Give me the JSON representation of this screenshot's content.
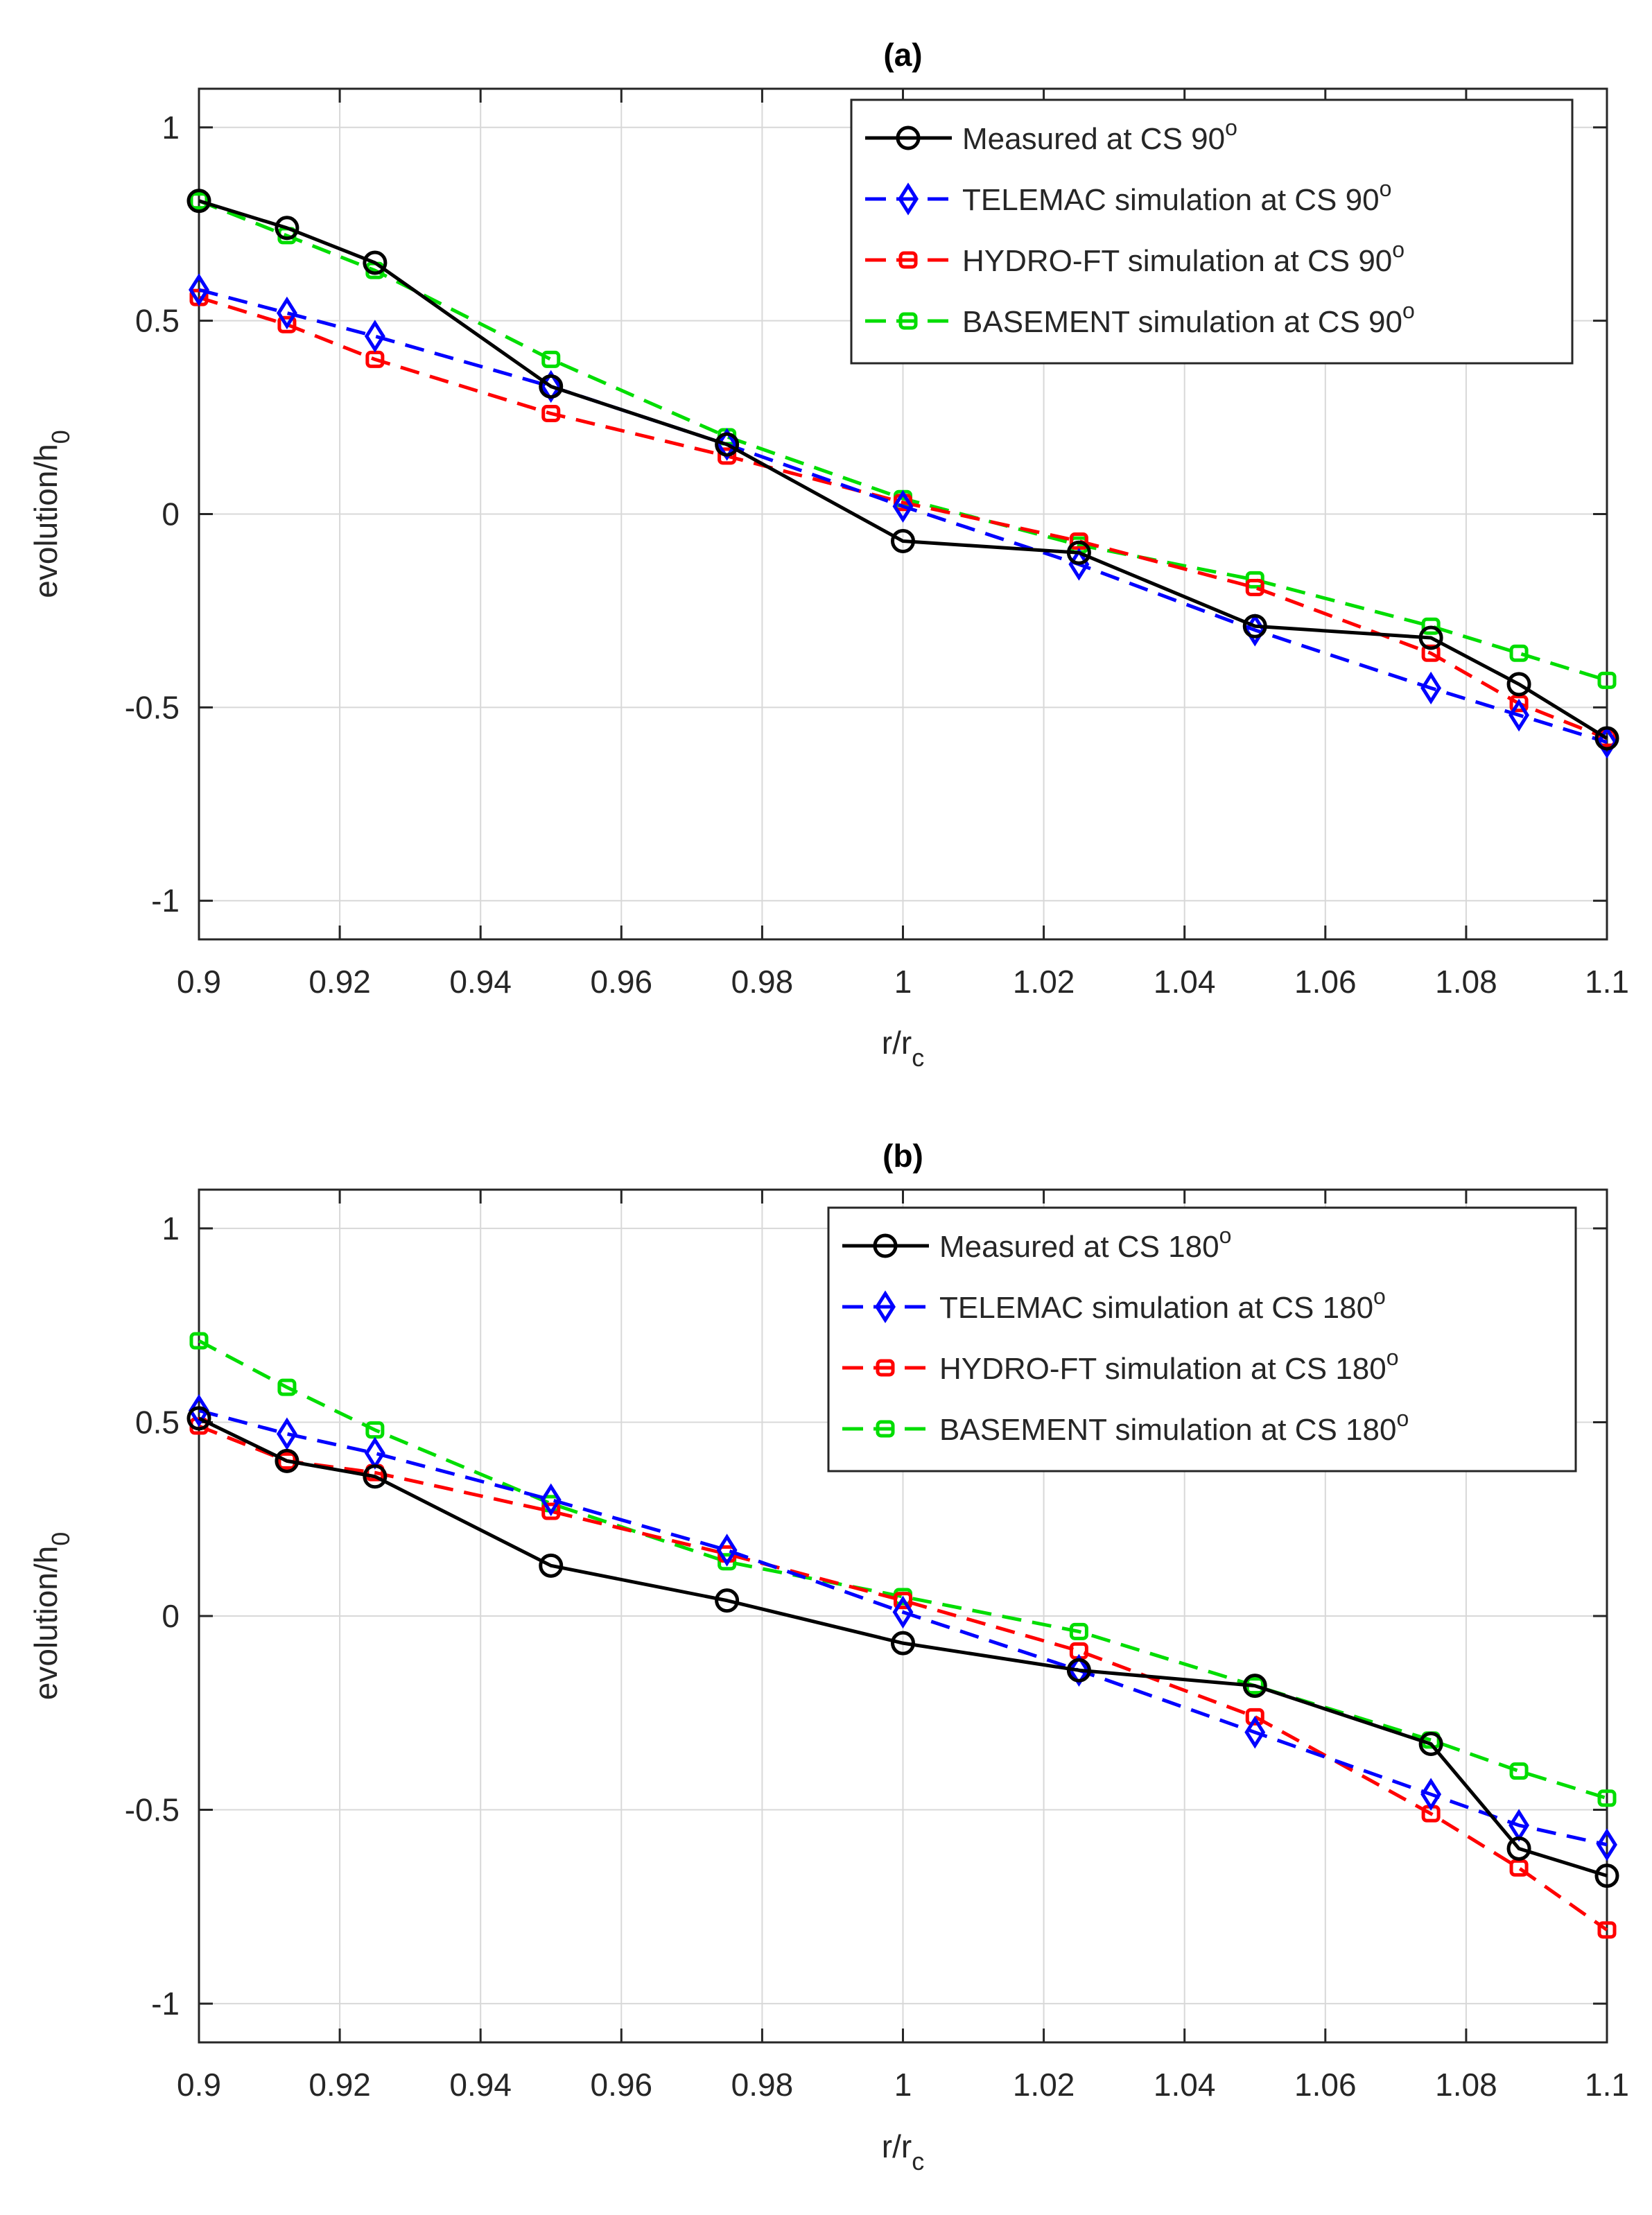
{
  "colors": {
    "measured": "#000000",
    "telemac": "#0000ff",
    "hydroft": "#ff0000",
    "basement": "#00dd00",
    "grid": "#d8d8d8",
    "axis": "#262626"
  },
  "chart_data": [
    {
      "type": "line",
      "title": "(a)",
      "xlabel": "r/r",
      "xlabel_sub": "c",
      "ylabel": "evolution/h",
      "ylabel_sub": "0",
      "xlim": [
        0.9,
        1.1
      ],
      "ylim": [
        -1.1,
        1.1
      ],
      "xticks": [
        0.9,
        0.92,
        0.94,
        0.96,
        0.98,
        1,
        1.02,
        1.04,
        1.06,
        1.08,
        1.1
      ],
      "xtick_labels": [
        "0.9",
        "0.92",
        "0.94",
        "0.96",
        "0.98",
        "1",
        "1.02",
        "1.04",
        "1.06",
        "1.08",
        "1.1"
      ],
      "yticks": [
        1,
        0.5,
        0,
        -0.5,
        -1
      ],
      "ytick_labels": [
        "1",
        "0.5",
        "0",
        "-0.5",
        "-1"
      ],
      "grid": true,
      "legend_position": "top-right",
      "x": [
        0.9,
        0.9125,
        0.925,
        0.95,
        0.975,
        1.0,
        1.025,
        1.05,
        1.075,
        1.0875,
        1.1
      ],
      "series": [
        {
          "name": "Measured at CS 90",
          "sup": "o",
          "key": "measured",
          "marker": "circle",
          "dash": "solid",
          "values": [
            0.81,
            0.74,
            0.65,
            0.33,
            0.18,
            -0.07,
            -0.1,
            -0.29,
            -0.32,
            -0.44,
            -0.58
          ]
        },
        {
          "name": "TELEMAC simulation at CS 90",
          "sup": "o",
          "key": "telemac",
          "marker": "diamond",
          "dash": "dashed",
          "values": [
            0.58,
            0.52,
            0.46,
            0.33,
            0.18,
            0.02,
            -0.13,
            -0.3,
            -0.45,
            -0.52,
            -0.59
          ]
        },
        {
          "name": "HYDRO-FT simulation at CS 90",
          "sup": "o",
          "key": "hydroft",
          "marker": "square",
          "dash": "dashed",
          "values": [
            0.56,
            0.49,
            0.4,
            0.26,
            0.15,
            0.03,
            -0.07,
            -0.19,
            -0.36,
            -0.49,
            -0.58
          ]
        },
        {
          "name": "BASEMENT simulation at CS 90",
          "sup": "o",
          "key": "basement",
          "marker": "square",
          "dash": "dashed",
          "values": [
            0.81,
            0.72,
            0.63,
            0.4,
            0.2,
            0.04,
            -0.08,
            -0.17,
            -0.29,
            -0.36,
            -0.43
          ]
        }
      ]
    },
    {
      "type": "line",
      "title": "(b)",
      "xlabel": "r/r",
      "xlabel_sub": "c",
      "ylabel": "evolution/h",
      "ylabel_sub": "0",
      "xlim": [
        0.9,
        1.1
      ],
      "ylim": [
        -1.1,
        1.1
      ],
      "xticks": [
        0.9,
        0.92,
        0.94,
        0.96,
        0.98,
        1,
        1.02,
        1.04,
        1.06,
        1.08,
        1.1
      ],
      "xtick_labels": [
        "0.9",
        "0.92",
        "0.94",
        "0.96",
        "0.98",
        "1",
        "1.02",
        "1.04",
        "1.06",
        "1.08",
        "1.1"
      ],
      "yticks": [
        1,
        0.5,
        0,
        -0.5,
        -1
      ],
      "ytick_labels": [
        "1",
        "0.5",
        "0",
        "-0.5",
        "-1"
      ],
      "grid": true,
      "legend_position": "top-right",
      "x": [
        0.9,
        0.9125,
        0.925,
        0.95,
        0.975,
        1.0,
        1.025,
        1.05,
        1.075,
        1.0875,
        1.1
      ],
      "series": [
        {
          "name": "Measured at CS 180",
          "sup": "o",
          "key": "measured",
          "marker": "circle",
          "dash": "solid",
          "values": [
            0.51,
            0.4,
            0.36,
            0.13,
            0.04,
            -0.07,
            -0.14,
            -0.18,
            -0.33,
            -0.6,
            -0.67
          ]
        },
        {
          "name": "TELEMAC simulation at CS 180",
          "sup": "o",
          "key": "telemac",
          "marker": "diamond",
          "dash": "dashed",
          "values": [
            0.53,
            0.47,
            0.42,
            0.3,
            0.17,
            0.01,
            -0.14,
            -0.3,
            -0.46,
            -0.54,
            -0.59
          ]
        },
        {
          "name": "HYDRO-FT simulation at CS 180",
          "sup": "o",
          "key": "hydroft",
          "marker": "square",
          "dash": "dashed",
          "values": [
            0.49,
            0.4,
            0.37,
            0.27,
            0.16,
            0.04,
            -0.09,
            -0.26,
            -0.51,
            -0.65,
            -0.81
          ]
        },
        {
          "name": "BASEMENT simulation at CS 180",
          "sup": "o",
          "key": "basement",
          "marker": "square",
          "dash": "dashed",
          "values": [
            0.71,
            0.59,
            0.48,
            0.29,
            0.14,
            0.05,
            -0.04,
            -0.18,
            -0.32,
            -0.4,
            -0.47
          ]
        }
      ]
    }
  ]
}
